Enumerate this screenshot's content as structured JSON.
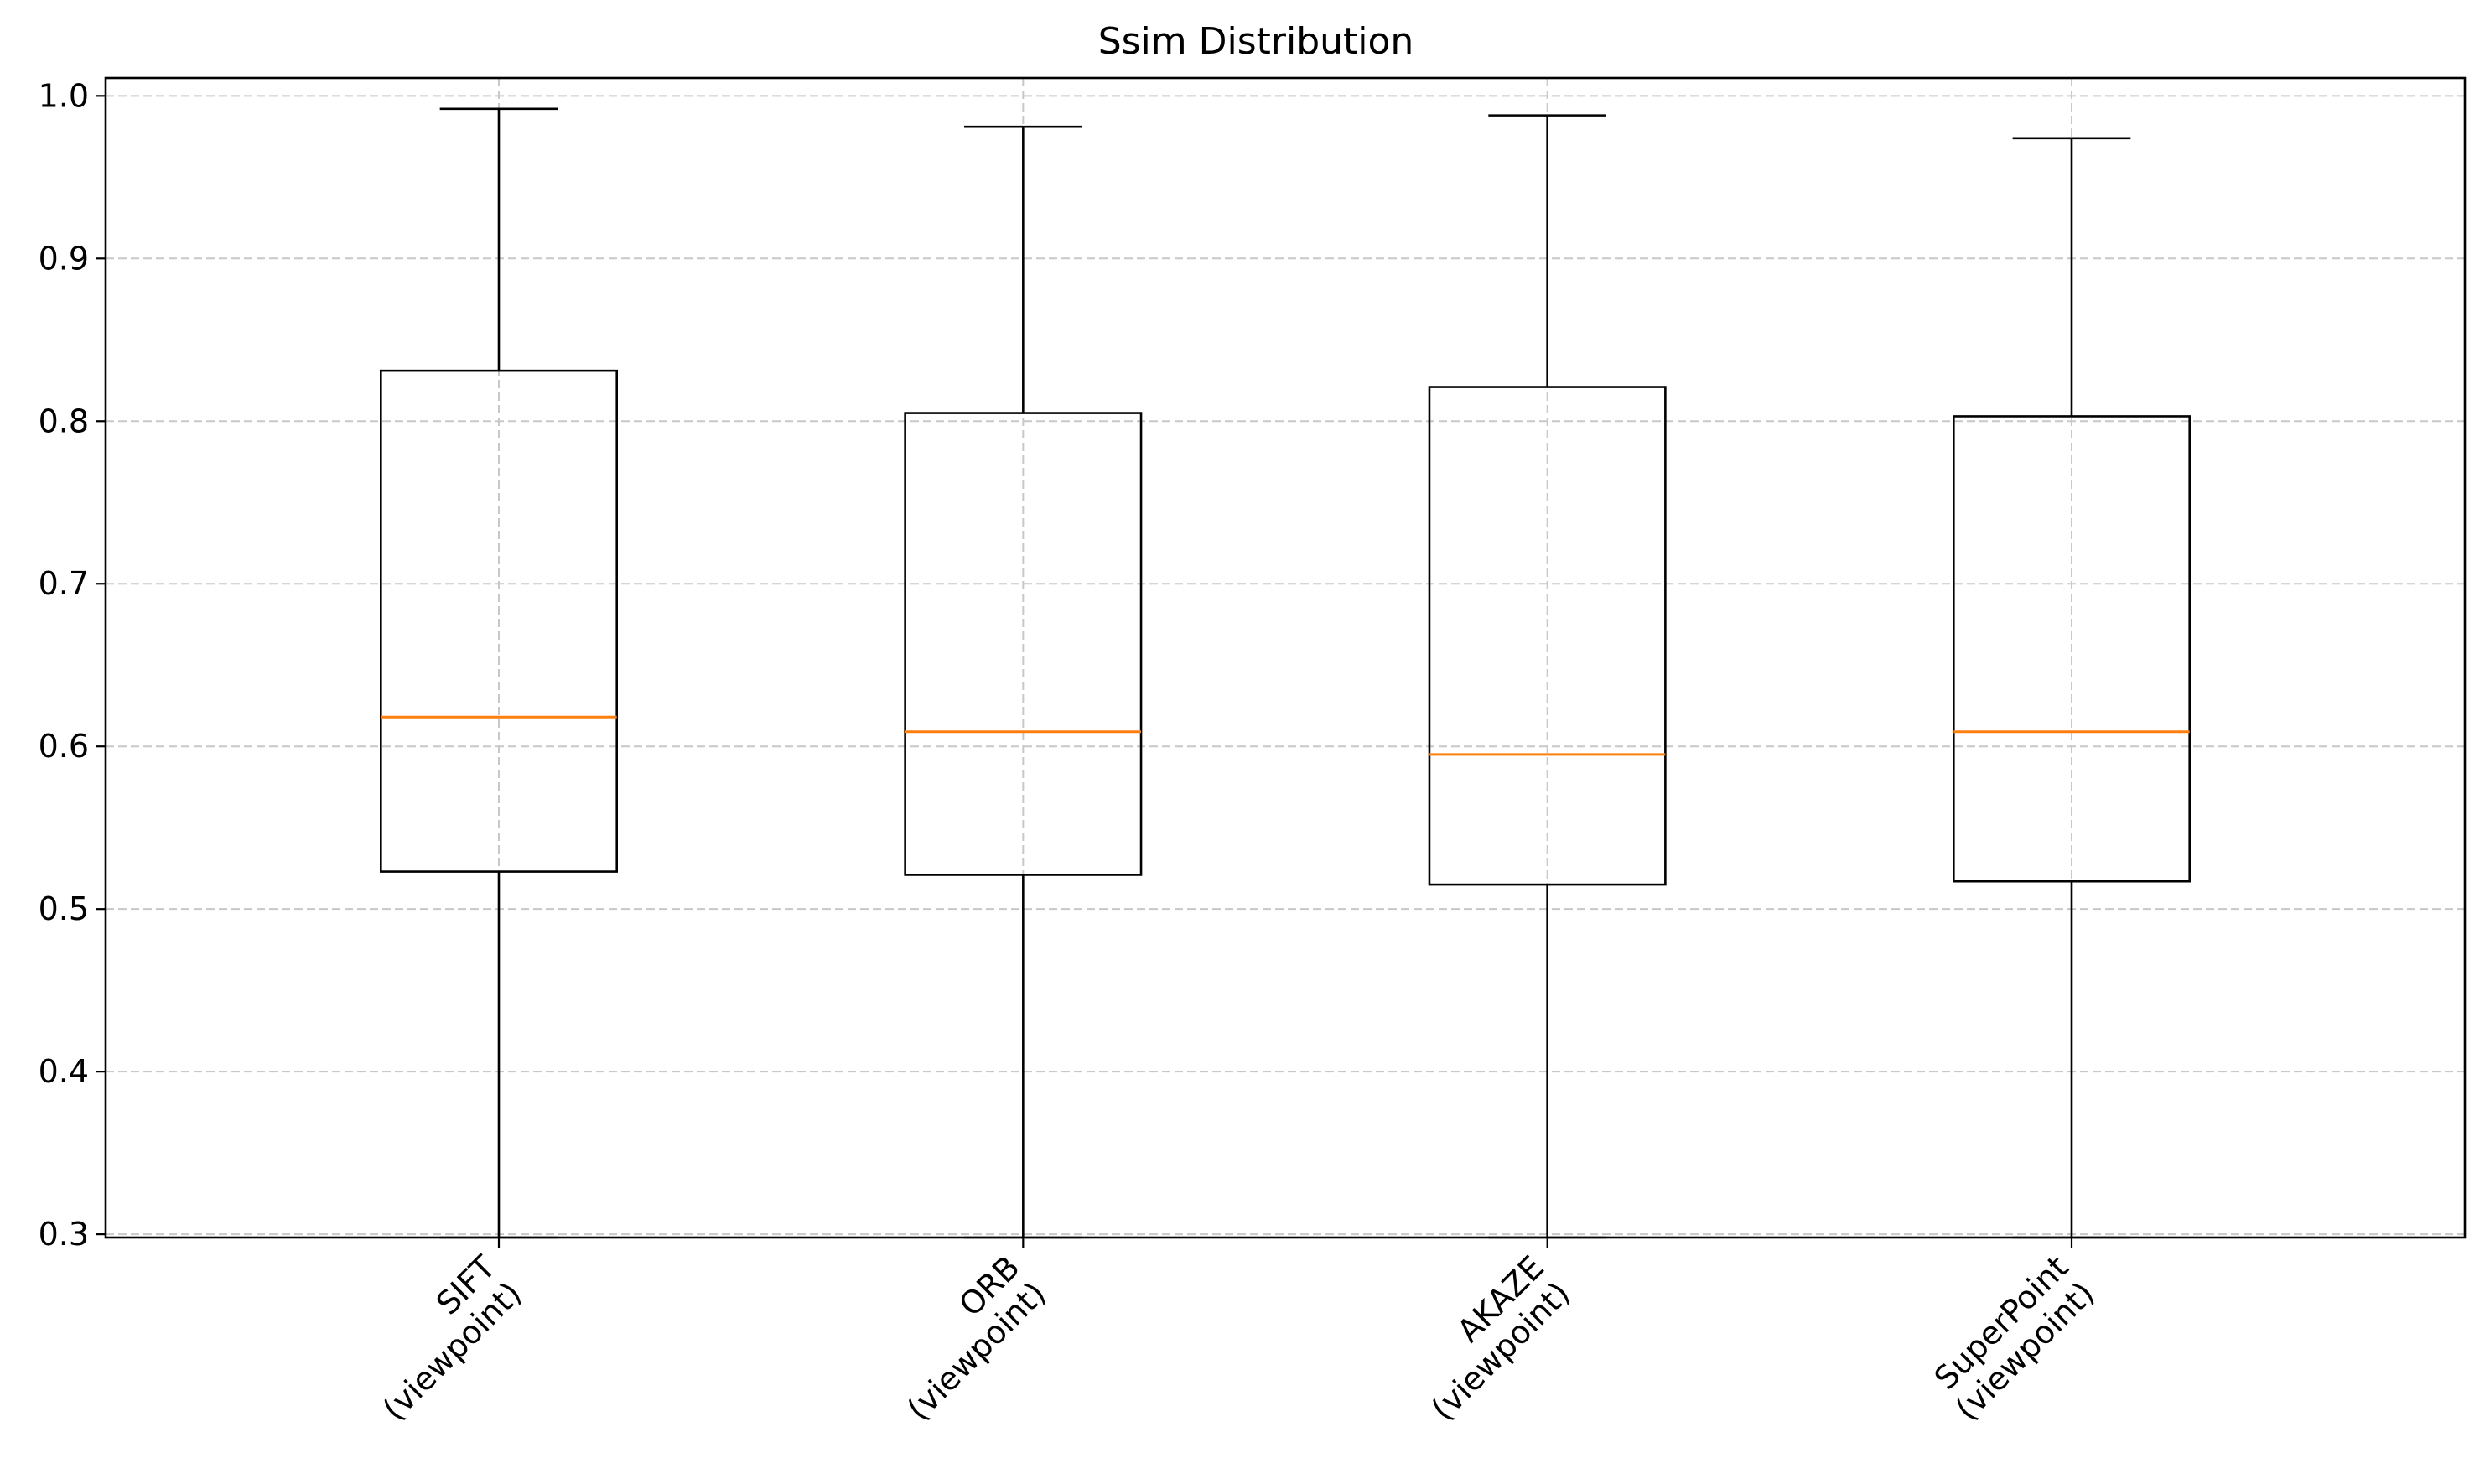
{
  "chart_data": {
    "type": "box",
    "title": "Ssim Distribution",
    "xlabel": "",
    "ylabel": "",
    "categories": [
      [
        "SIFT",
        "(viewpoint)"
      ],
      [
        "ORB",
        "(viewpoint)"
      ],
      [
        "AKAZE",
        "(viewpoint)"
      ],
      [
        "SuperPoint",
        "(viewpoint)"
      ]
    ],
    "boxes": [
      {
        "whisker_low": 0.298,
        "q1": 0.523,
        "median": 0.618,
        "q3": 0.831,
        "whisker_high": 0.992
      },
      {
        "whisker_low": 0.298,
        "q1": 0.521,
        "median": 0.609,
        "q3": 0.805,
        "whisker_high": 0.981
      },
      {
        "whisker_low": 0.298,
        "q1": 0.515,
        "median": 0.595,
        "q3": 0.821,
        "whisker_high": 0.988
      },
      {
        "whisker_low": 0.298,
        "q1": 0.517,
        "median": 0.609,
        "q3": 0.803,
        "whisker_high": 0.974
      }
    ],
    "yticks": [
      0.3,
      0.4,
      0.5,
      0.6,
      0.7,
      0.8,
      0.9,
      1.0
    ],
    "ytick_labels": [
      "0.3",
      "0.4",
      "0.5",
      "0.6",
      "0.7",
      "0.8",
      "0.9",
      "1.0"
    ],
    "ylim": [
      0.298,
      1.011
    ],
    "grid": true,
    "colors": {
      "box": "#000000",
      "median": "#ff7f0e",
      "grid": "#c8c8c8",
      "axes": "#000000"
    }
  }
}
